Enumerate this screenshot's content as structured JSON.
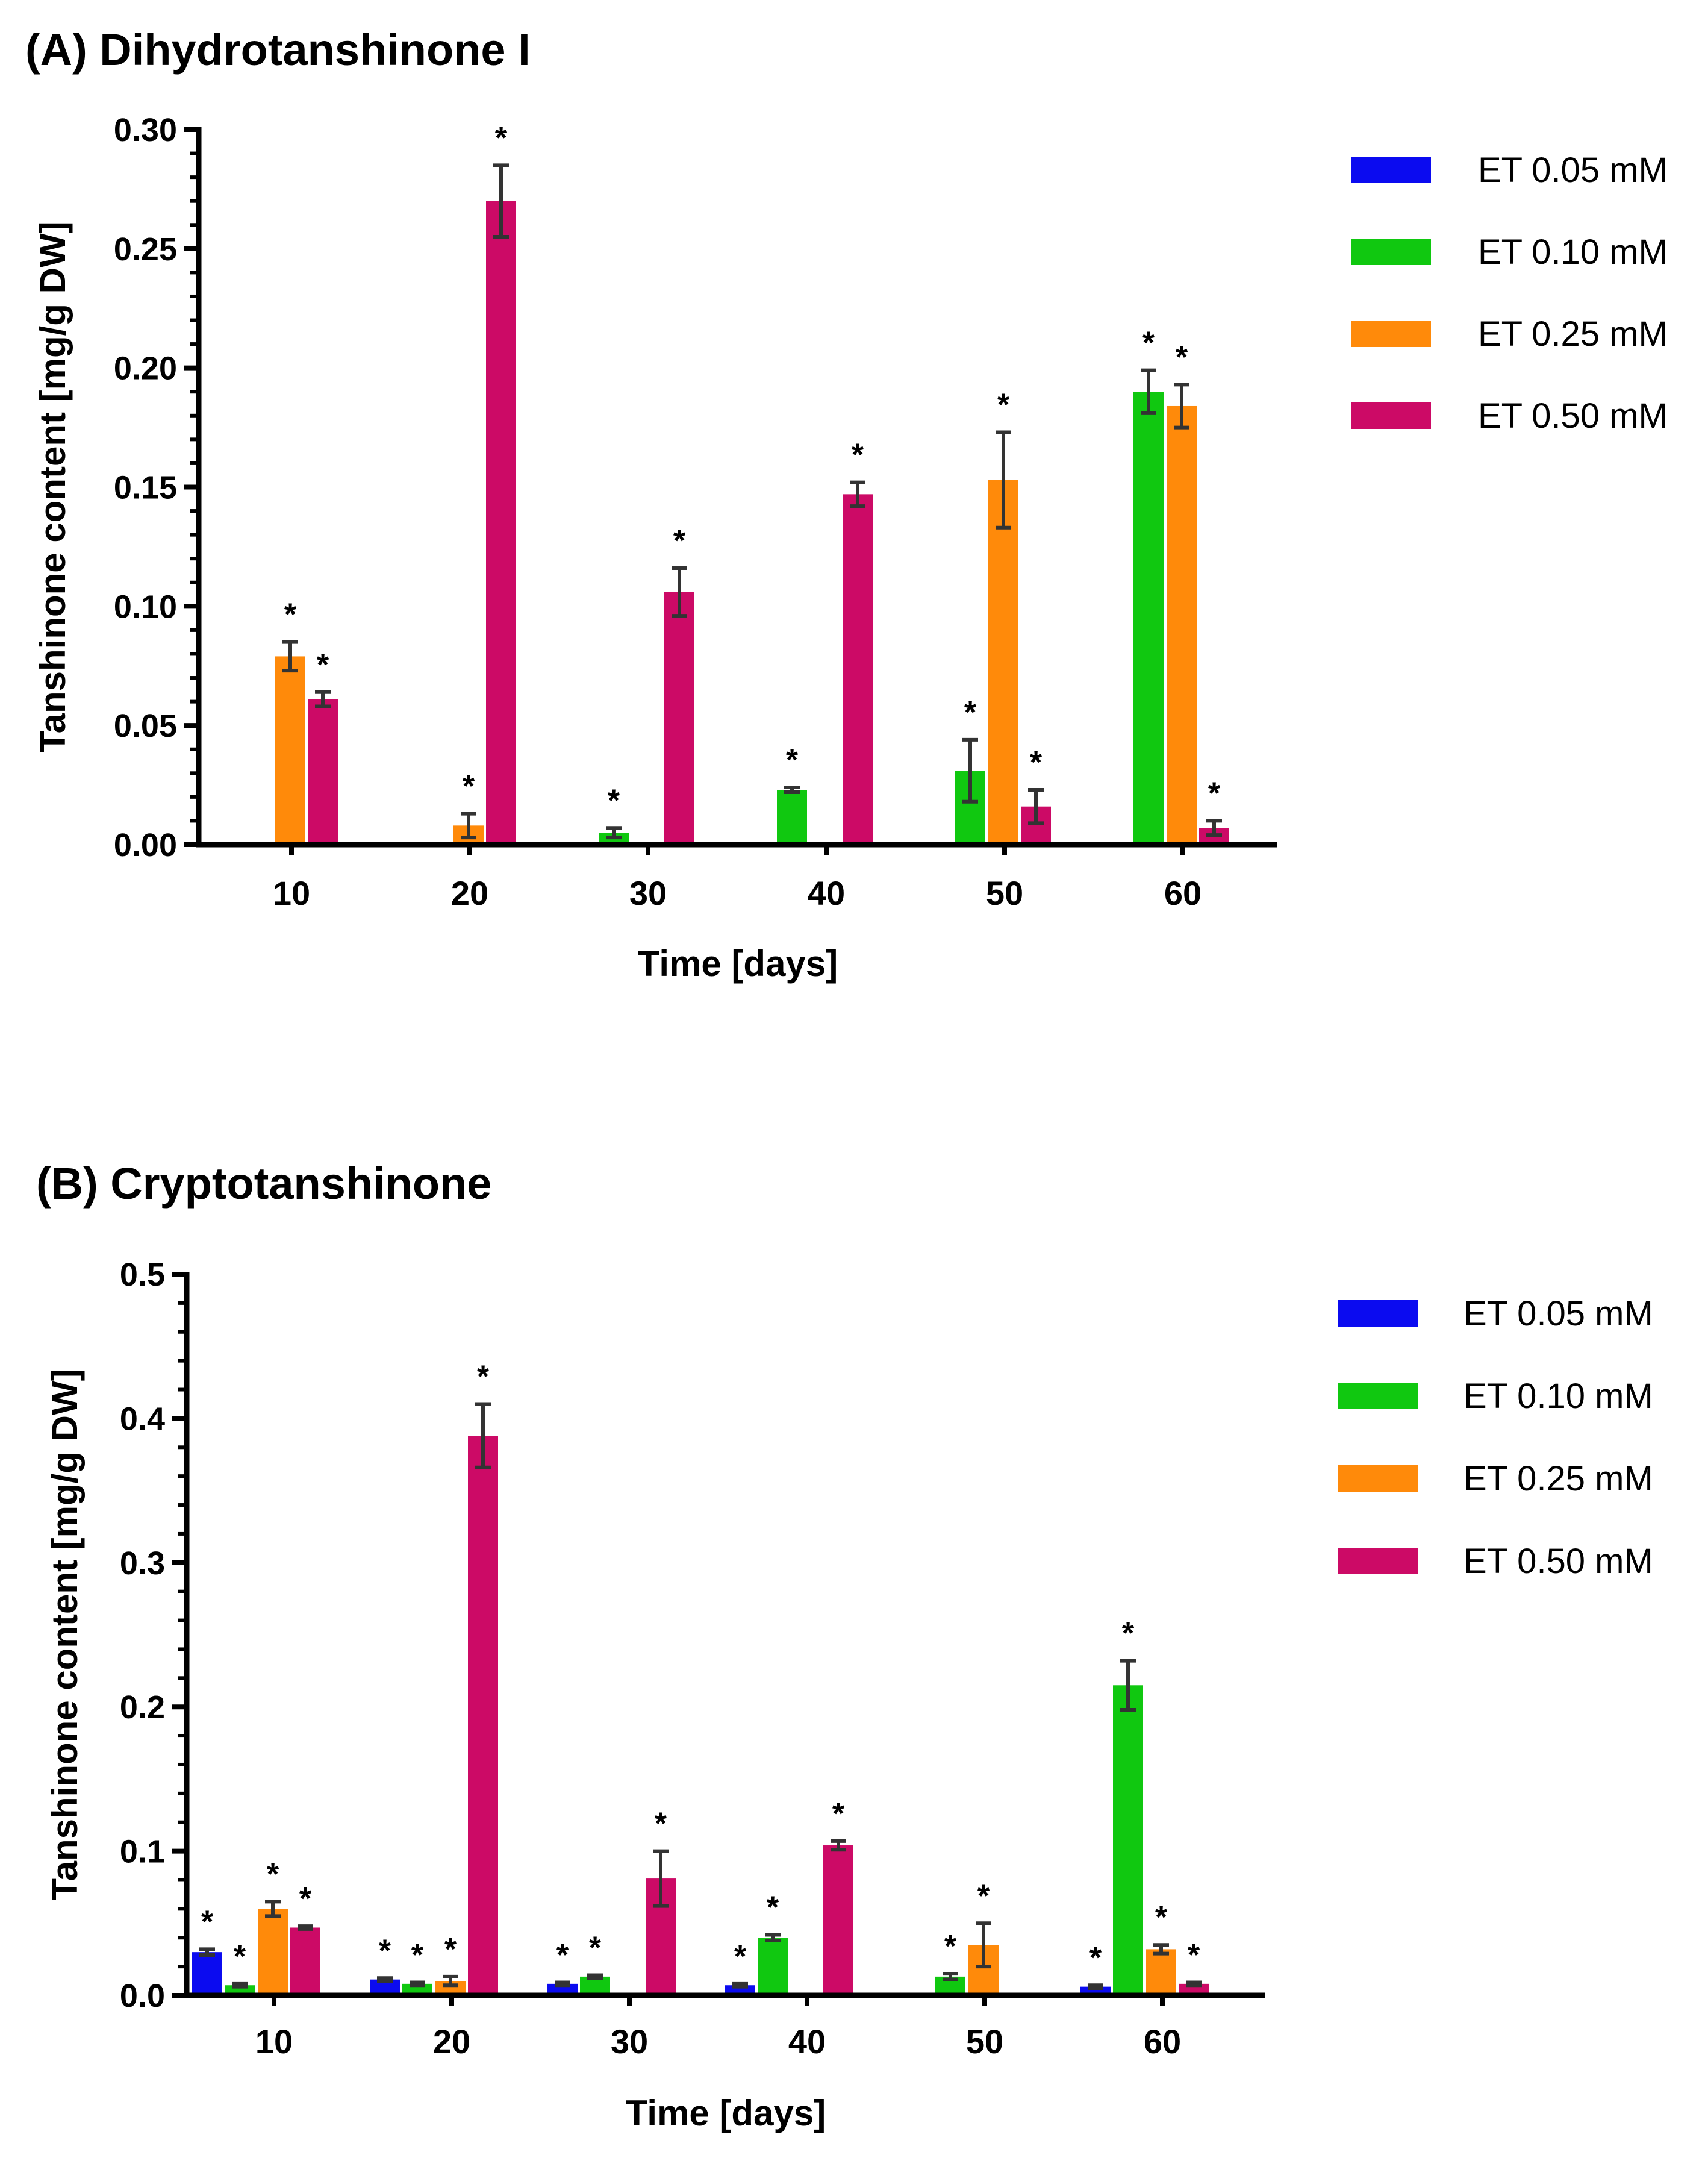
{
  "colors": {
    "ET_0_05": "#0b0bf0",
    "ET_0_10": "#10c810",
    "ET_0_25": "#ff8a0a",
    "ET_0_50": "#cc0a66",
    "error_bar": "#333333"
  },
  "chart_data": [
    {
      "type": "bar",
      "panel_title": "(A) Dihydrotanshinone I",
      "xlabel": "Time [days]",
      "ylabel": "Tanshinone content [mg/g DW]",
      "ylim": [
        0,
        0.3
      ],
      "yticks": [
        0.0,
        0.05,
        0.1,
        0.15,
        0.2,
        0.25,
        0.3
      ],
      "ytick_labels": [
        "0.00",
        "0.05",
        "0.10",
        "0.15",
        "0.20",
        "0.25",
        "0.30"
      ],
      "categories": [
        "10",
        "20",
        "30",
        "40",
        "50",
        "60"
      ],
      "legend": [
        "ET 0.05 mM",
        "ET 0.10 mM",
        "ET 0.25 mM",
        "ET 0.50 mM"
      ],
      "series": [
        {
          "name": "ET 0.05 mM",
          "values": [
            null,
            null,
            null,
            null,
            null,
            null
          ],
          "errors": [
            null,
            null,
            null,
            null,
            null,
            null
          ],
          "stars": [
            "",
            "",
            "",
            "",
            "",
            ""
          ]
        },
        {
          "name": "ET 0.10 mM",
          "values": [
            null,
            null,
            0.005,
            0.023,
            0.031,
            0.19
          ],
          "errors": [
            null,
            null,
            0.002,
            0.001,
            0.013,
            0.009
          ],
          "stars": [
            "",
            "",
            "*",
            "*",
            "*",
            "*"
          ]
        },
        {
          "name": "ET 0.25 mM",
          "values": [
            0.079,
            0.008,
            null,
            null,
            0.153,
            0.184
          ],
          "errors": [
            0.006,
            0.005,
            null,
            null,
            0.02,
            0.009
          ],
          "stars": [
            "*",
            "*",
            "",
            "",
            "*",
            "*"
          ]
        },
        {
          "name": "ET 0.50 mM",
          "values": [
            0.061,
            0.27,
            0.106,
            0.147,
            0.016,
            0.007
          ],
          "errors": [
            0.003,
            0.015,
            0.01,
            0.005,
            0.007,
            0.003
          ],
          "stars": [
            "*",
            "*",
            "*",
            "*",
            "*",
            "*"
          ]
        }
      ]
    },
    {
      "type": "bar",
      "panel_title": "(B) Cryptotanshinone",
      "xlabel": "Time [days]",
      "ylabel": "Tanshinone content [mg/g DW]",
      "ylim": [
        0,
        0.5
      ],
      "yticks": [
        0.0,
        0.1,
        0.2,
        0.3,
        0.4,
        0.5
      ],
      "ytick_labels": [
        "0.0",
        "0.1",
        "0.2",
        "0.3",
        "0.4",
        "0.5"
      ],
      "categories": [
        "10",
        "20",
        "30",
        "40",
        "50",
        "60"
      ],
      "legend": [
        "ET 0.05 mM",
        "ET 0.10 mM",
        "ET 0.25 mM",
        "ET 0.50 mM"
      ],
      "series": [
        {
          "name": "ET 0.05 mM",
          "values": [
            0.03,
            0.011,
            0.008,
            0.007,
            null,
            0.006
          ],
          "errors": [
            0.002,
            0.001,
            0.001,
            0.001,
            null,
            0.001
          ],
          "stars": [
            "*",
            "*",
            "*",
            "*",
            "",
            "*"
          ]
        },
        {
          "name": "ET 0.10 mM",
          "values": [
            0.007,
            0.008,
            0.013,
            0.04,
            0.013,
            0.215
          ],
          "errors": [
            0.001,
            0.001,
            0.001,
            0.002,
            0.002,
            0.017
          ],
          "stars": [
            "*",
            "*",
            "*",
            "*",
            "*",
            "*"
          ]
        },
        {
          "name": "ET 0.25 mM",
          "values": [
            0.06,
            0.01,
            null,
            null,
            0.035,
            0.032
          ],
          "errors": [
            0.005,
            0.003,
            null,
            null,
            0.015,
            0.003
          ],
          "stars": [
            "*",
            "*",
            "",
            "",
            "*",
            "*"
          ]
        },
        {
          "name": "ET 0.50 mM",
          "values": [
            0.047,
            0.388,
            0.081,
            0.104,
            null,
            0.008
          ],
          "errors": [
            0.001,
            0.022,
            0.019,
            0.003,
            null,
            0.001
          ],
          "stars": [
            "*",
            "*",
            "*",
            "*",
            "",
            "*"
          ]
        }
      ]
    }
  ]
}
